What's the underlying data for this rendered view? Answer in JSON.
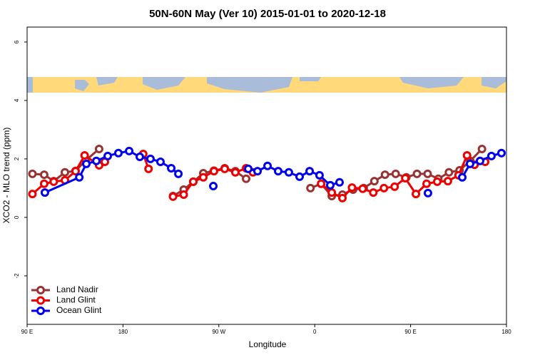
{
  "chart_data": {
    "type": "line",
    "title": "50N-60N May (Ver 10)   2015-01-01 to 2020-12-18",
    "x_label": "Longitude",
    "y_label": "XCO2 - MLO trend (ppm)",
    "xlim": [
      90,
      540
    ],
    "ylim": [
      -3.66,
      6.51
    ],
    "xticks": [
      {
        "value": 90,
        "label": "90 E"
      },
      180,
      {
        "value": 270,
        "label": "90 W"
      },
      {
        "value": 360,
        "label": "0"
      },
      {
        "value": 450,
        "label": "90 E"
      },
      {
        "value": 540,
        "label": "180"
      }
    ],
    "yticks": [
      -2,
      0,
      2,
      4,
      6
    ],
    "legend": "bottom-left",
    "series": [
      {
        "name": "Land Nadir",
        "color": "#993333",
        "x": [
          95,
          106,
          115,
          125.5,
          135.5,
          145,
          157.6,
          null,
          227,
          237,
          246,
          255.4,
          265.4,
          275.5,
          285.5,
          295.6,
          null,
          356,
          366,
          376,
          386,
          396,
          406,
          416,
          426,
          436,
          446,
          456,
          466,
          476,
          486,
          496,
          506,
          517
        ],
        "values": [
          1.49,
          1.46,
          1.24,
          1.54,
          1.59,
          1.95,
          2.34,
          null,
          0.73,
          0.95,
          1.22,
          1.51,
          1.6,
          1.68,
          1.58,
          1.32,
          null,
          1.0,
          1.15,
          0.73,
          0.78,
          0.95,
          1.0,
          1.24,
          1.46,
          1.49,
          1.37,
          1.49,
          1.49,
          1.32,
          1.54,
          1.61,
          1.93,
          2.34
        ]
      },
      {
        "name": "Land Glint",
        "color": "#ee0000",
        "x": [
          95,
          106,
          115,
          125.5,
          135.5,
          144,
          157.6,
          163,
          null,
          199,
          204,
          null,
          227,
          237,
          246,
          255.4,
          265.4,
          275.5,
          285.5,
          295.6,
          302,
          null,
          366,
          376,
          386,
          395,
          405,
          415,
          425,
          435,
          445,
          455,
          465,
          475,
          485,
          495,
          503,
          510,
          520
        ],
        "values": [
          0.8,
          1.15,
          1.22,
          1.27,
          1.58,
          2.12,
          1.78,
          1.9,
          null,
          2.17,
          1.66,
          null,
          0.71,
          0.78,
          1.22,
          1.37,
          1.58,
          1.66,
          1.54,
          1.68,
          1.54,
          null,
          1.15,
          0.85,
          0.66,
          1.02,
          0.98,
          0.85,
          1.0,
          1.05,
          1.34,
          0.8,
          1.15,
          1.22,
          1.24,
          1.44,
          2.12,
          1.8,
          1.9
        ]
      },
      {
        "name": "Ocean Glint",
        "color": "#0000ee",
        "x": [
          106.7,
          139,
          145.6,
          155,
          165.7,
          175.7,
          185.8,
          195.8,
          205.8,
          215.2,
          225.3,
          232,
          null,
          264.8,
          null,
          297.6,
          306.3,
          315.7,
          325.7,
          335.7,
          345.8,
          355.2,
          364.5,
          374.6,
          383.3,
          null,
          466.3,
          null,
          498.5,
          505.8,
          515.2,
          525.9,
          535.3
        ],
        "values": [
          0.85,
          1.37,
          1.83,
          1.93,
          2.1,
          2.2,
          2.27,
          2.07,
          2.0,
          1.9,
          1.68,
          1.49,
          null,
          1.07,
          null,
          1.66,
          1.58,
          1.76,
          1.58,
          1.54,
          1.39,
          1.58,
          1.44,
          1.1,
          1.2,
          null,
          0.83,
          null,
          1.37,
          1.83,
          1.93,
          2.1,
          2.2
        ]
      }
    ]
  }
}
